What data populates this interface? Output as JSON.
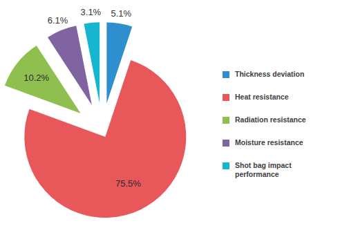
{
  "chart_data": {
    "type": "pie",
    "categories": [
      "Thickness deviation",
      "Heat resistance",
      "Radiation resistance",
      "Moisture resistance",
      "Shot bag impact performance"
    ],
    "values": [
      5.1,
      75.5,
      10.2,
      6.1,
      3.1
    ],
    "value_labels": [
      "5.1%",
      "75.5%",
      "10.2%",
      "6.1%",
      "3.1%"
    ],
    "colors": [
      "#2f8fce",
      "#e8585a",
      "#8fc04f",
      "#8064a2",
      "#17b6d0"
    ],
    "data_labels": true,
    "legend": "right"
  }
}
